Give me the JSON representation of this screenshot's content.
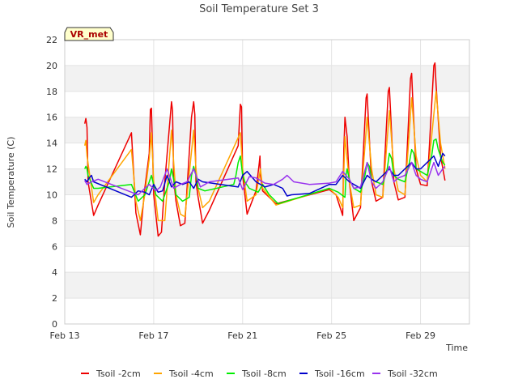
{
  "chart_data": {
    "type": "line",
    "title": "Soil Temperature Set 3",
    "xlabel": "Time",
    "ylabel": "Soil Temperature (C)",
    "annotation": "VR_met",
    "xlim": [
      0,
      18.2
    ],
    "ylim": [
      0,
      22
    ],
    "yticks": [
      0,
      2,
      4,
      6,
      8,
      10,
      12,
      14,
      16,
      18,
      20,
      22
    ],
    "xticks": [
      {
        "label": "Feb 13",
        "value": 0
      },
      {
        "label": "Feb 17",
        "value": 4
      },
      {
        "label": "Feb 21",
        "value": 8
      },
      {
        "label": "Feb 25",
        "value": 12
      },
      {
        "label": "Feb 29",
        "value": 16
      }
    ],
    "grid": true,
    "legend_position": "bottom",
    "series": [
      {
        "name": "Tsoil -2cm",
        "color": "#ee0000",
        "x": [
          0.9,
          0.95,
          1.0,
          1.05,
          1.3,
          1.5,
          3.0,
          3.2,
          3.4,
          3.6,
          3.8,
          3.85,
          3.9,
          4.0,
          4.2,
          4.35,
          4.5,
          4.8,
          4.85,
          4.9,
          5.0,
          5.2,
          5.4,
          5.7,
          5.8,
          5.85,
          5.9,
          6.0,
          6.2,
          6.5,
          7.8,
          7.85,
          7.9,
          7.95,
          8.0,
          8.2,
          8.6,
          8.75,
          8.78,
          8.8,
          8.9,
          9.5,
          11.9,
          12.2,
          12.5,
          12.55,
          12.6,
          12.7,
          12.8,
          13.0,
          13.3,
          13.55,
          13.6,
          13.65,
          13.8,
          14.0,
          14.3,
          14.55,
          14.6,
          14.65,
          14.8,
          15.0,
          15.3,
          15.55,
          15.6,
          15.65,
          15.8,
          16.0,
          16.3,
          16.6,
          16.65,
          16.7,
          16.9,
          17.1
        ],
        "y": [
          15.5,
          15.9,
          15.2,
          11.0,
          8.4,
          9.2,
          14.8,
          8.6,
          6.9,
          10.5,
          13.2,
          16.6,
          16.7,
          10.0,
          6.8,
          7.1,
          11.0,
          17.2,
          16.5,
          11.2,
          9.5,
          7.6,
          7.8,
          16.0,
          17.2,
          16.2,
          11.0,
          9.8,
          7.8,
          8.8,
          13.8,
          15.5,
          17.0,
          16.8,
          11.5,
          8.5,
          10.3,
          12.5,
          13.0,
          11.5,
          10.3,
          9.3,
          10.4,
          10.0,
          8.4,
          13.5,
          16.0,
          14.5,
          11.0,
          8.0,
          9.0,
          17.5,
          17.8,
          16.0,
          11.0,
          9.5,
          9.8,
          18.0,
          18.3,
          16.5,
          11.0,
          9.6,
          9.8,
          19.0,
          19.4,
          17.5,
          12.0,
          10.8,
          10.7,
          20.0,
          20.2,
          18.5,
          13.0,
          11.1
        ]
      },
      {
        "name": "Tsoil -4cm",
        "color": "#ffa500",
        "x": [
          0.9,
          0.95,
          1.0,
          1.3,
          1.5,
          3.0,
          3.2,
          3.4,
          3.6,
          3.8,
          3.9,
          4.0,
          4.2,
          4.5,
          4.8,
          4.9,
          5.0,
          5.2,
          5.4,
          5.8,
          5.9,
          6.0,
          6.2,
          6.5,
          7.9,
          8.0,
          8.2,
          8.6,
          8.8,
          8.9,
          9.5,
          11.9,
          12.3,
          12.5,
          12.6,
          12.8,
          13.0,
          13.3,
          13.6,
          13.8,
          14.0,
          14.3,
          14.6,
          14.8,
          15.0,
          15.3,
          15.6,
          15.8,
          16.0,
          16.3,
          16.7,
          16.9,
          17.1
        ],
        "y": [
          13.8,
          14.2,
          13.0,
          9.4,
          10.0,
          13.5,
          9.5,
          8.0,
          10.0,
          12.8,
          14.8,
          11.0,
          8.0,
          8.0,
          15.0,
          12.5,
          10.0,
          8.5,
          8.3,
          15.0,
          12.0,
          10.5,
          9.0,
          9.5,
          14.8,
          12.0,
          9.5,
          10.0,
          12.0,
          10.5,
          9.2,
          10.5,
          9.8,
          9.0,
          14.5,
          11.0,
          9.0,
          9.2,
          16.0,
          12.0,
          10.0,
          9.8,
          16.5,
          12.0,
          10.3,
          10.0,
          17.5,
          13.0,
          11.5,
          11.0,
          18.0,
          14.0,
          12.0
        ]
      },
      {
        "name": "Tsoil -8cm",
        "color": "#00ee00",
        "x": [
          0.9,
          0.95,
          1.0,
          1.05,
          1.3,
          1.5,
          3.0,
          3.3,
          3.6,
          3.8,
          3.9,
          4.1,
          4.4,
          4.7,
          4.8,
          4.9,
          5.0,
          5.3,
          5.6,
          5.7,
          5.8,
          5.9,
          6.0,
          6.3,
          7.6,
          7.7,
          7.8,
          7.9,
          8.0,
          8.1,
          8.3,
          8.7,
          8.9,
          9.2,
          9.6,
          11.9,
          12.3,
          12.6,
          12.65,
          12.7,
          12.8,
          13.0,
          13.3,
          13.5,
          13.6,
          13.7,
          13.8,
          14.0,
          14.3,
          14.5,
          14.6,
          14.7,
          14.8,
          15.0,
          15.3,
          15.5,
          15.6,
          15.7,
          15.8,
          16.0,
          16.3,
          16.5,
          16.6,
          16.7,
          16.8,
          17.0,
          17.1
        ],
        "y": [
          12.0,
          12.2,
          12.0,
          11.5,
          10.5,
          10.5,
          10.8,
          9.5,
          10.0,
          11.0,
          11.5,
          10.0,
          9.5,
          11.0,
          12.0,
          11.2,
          10.0,
          9.5,
          9.8,
          11.5,
          12.2,
          11.5,
          10.5,
          10.3,
          10.8,
          11.5,
          12.5,
          13.0,
          11.5,
          11.0,
          10.5,
          10.2,
          10.8,
          10.0,
          9.3,
          10.5,
          10.2,
          9.8,
          11.5,
          12.0,
          11.2,
          10.5,
          10.2,
          11.5,
          12.5,
          12.2,
          11.2,
          11.0,
          10.8,
          12.0,
          13.2,
          12.8,
          11.5,
          11.2,
          11.0,
          12.5,
          13.5,
          13.2,
          12.0,
          11.8,
          11.5,
          13.0,
          14.2,
          14.3,
          13.5,
          12.5,
          12.3
        ]
      },
      {
        "name": "Tsoil -16cm",
        "color": "#0000cc",
        "x": [
          0.9,
          1.0,
          1.1,
          1.2,
          1.3,
          3.0,
          3.3,
          3.6,
          3.8,
          4.0,
          4.2,
          4.4,
          4.6,
          4.8,
          5.0,
          5.3,
          5.6,
          5.8,
          6.0,
          6.2,
          7.8,
          8.0,
          8.2,
          8.6,
          9.0,
          9.4,
          9.8,
          10.0,
          10.2,
          11.0,
          11.9,
          12.2,
          12.5,
          12.8,
          13.0,
          13.3,
          13.6,
          13.8,
          14.0,
          14.3,
          14.6,
          14.8,
          15.0,
          15.3,
          15.6,
          15.8,
          16.0,
          16.3,
          16.6,
          16.8,
          17.0,
          17.1
        ],
        "y": [
          11.2,
          11.0,
          11.3,
          11.5,
          11.0,
          9.8,
          10.3,
          10.2,
          10.0,
          10.8,
          10.2,
          10.3,
          11.5,
          10.6,
          11.0,
          10.8,
          11.0,
          10.5,
          11.2,
          11.0,
          10.6,
          11.5,
          11.8,
          11.0,
          10.6,
          10.8,
          10.5,
          9.9,
          10.0,
          10.1,
          10.8,
          10.8,
          11.5,
          11.0,
          10.8,
          10.5,
          11.5,
          11.2,
          11.0,
          11.5,
          12.0,
          11.5,
          11.5,
          12.0,
          12.5,
          12.0,
          12.0,
          12.5,
          13.0,
          12.2,
          13.2,
          13.0
        ]
      },
      {
        "name": "Tsoil -32cm",
        "color": "#9933ee",
        "x": [
          0.9,
          1.0,
          1.2,
          1.5,
          3.0,
          3.3,
          3.6,
          3.8,
          4.1,
          4.3,
          4.6,
          4.9,
          5.2,
          5.5,
          5.8,
          6.1,
          6.5,
          7.8,
          8.0,
          8.3,
          8.6,
          9.0,
          9.4,
          9.8,
          10.0,
          10.3,
          11.0,
          11.9,
          12.2,
          12.5,
          12.8,
          13.0,
          13.3,
          13.6,
          13.8,
          14.0,
          14.3,
          14.6,
          14.8,
          15.0,
          15.3,
          15.6,
          15.8,
          16.0,
          16.3,
          16.6,
          16.8,
          17.0,
          17.1
        ],
        "y": [
          11.1,
          10.8,
          11.0,
          11.2,
          10.2,
          10.0,
          10.5,
          10.8,
          10.3,
          10.6,
          12.0,
          10.5,
          10.8,
          11.0,
          12.0,
          10.6,
          11.0,
          11.3,
          10.4,
          11.4,
          11.3,
          10.9,
          10.8,
          11.2,
          11.5,
          11.0,
          10.8,
          10.9,
          11.0,
          11.8,
          11.2,
          10.5,
          10.6,
          12.5,
          11.0,
          10.5,
          11.0,
          12.2,
          11.0,
          11.3,
          11.5,
          12.5,
          11.5,
          11.2,
          11.0,
          12.5,
          11.5,
          12.0,
          12.2
        ]
      }
    ]
  }
}
